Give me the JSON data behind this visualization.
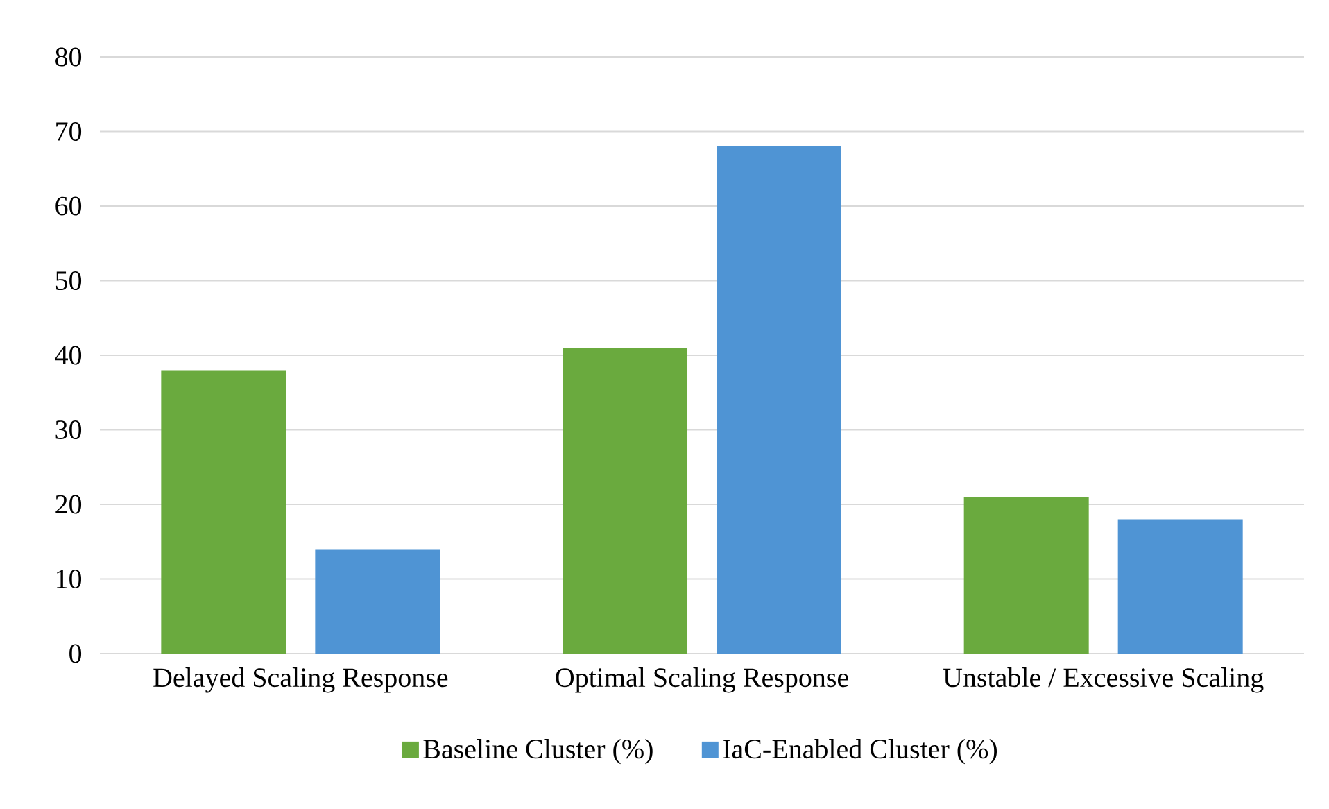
{
  "chart_data": {
    "type": "bar",
    "categories": [
      "Delayed Scaling Response",
      "Optimal Scaling Response",
      "Unstable / Excessive Scaling"
    ],
    "series": [
      {
        "name": "Baseline Cluster (%)",
        "color": "#6aaa3e",
        "values": [
          38,
          41,
          21
        ]
      },
      {
        "name": "IaC-Enabled Cluster (%)",
        "color": "#4f94d4",
        "values": [
          14,
          68,
          18
        ]
      }
    ],
    "ylim": [
      0,
      80
    ],
    "yticks": [
      0,
      10,
      20,
      30,
      40,
      50,
      60,
      70,
      80
    ],
    "grid": "y",
    "legend": "bottom"
  }
}
